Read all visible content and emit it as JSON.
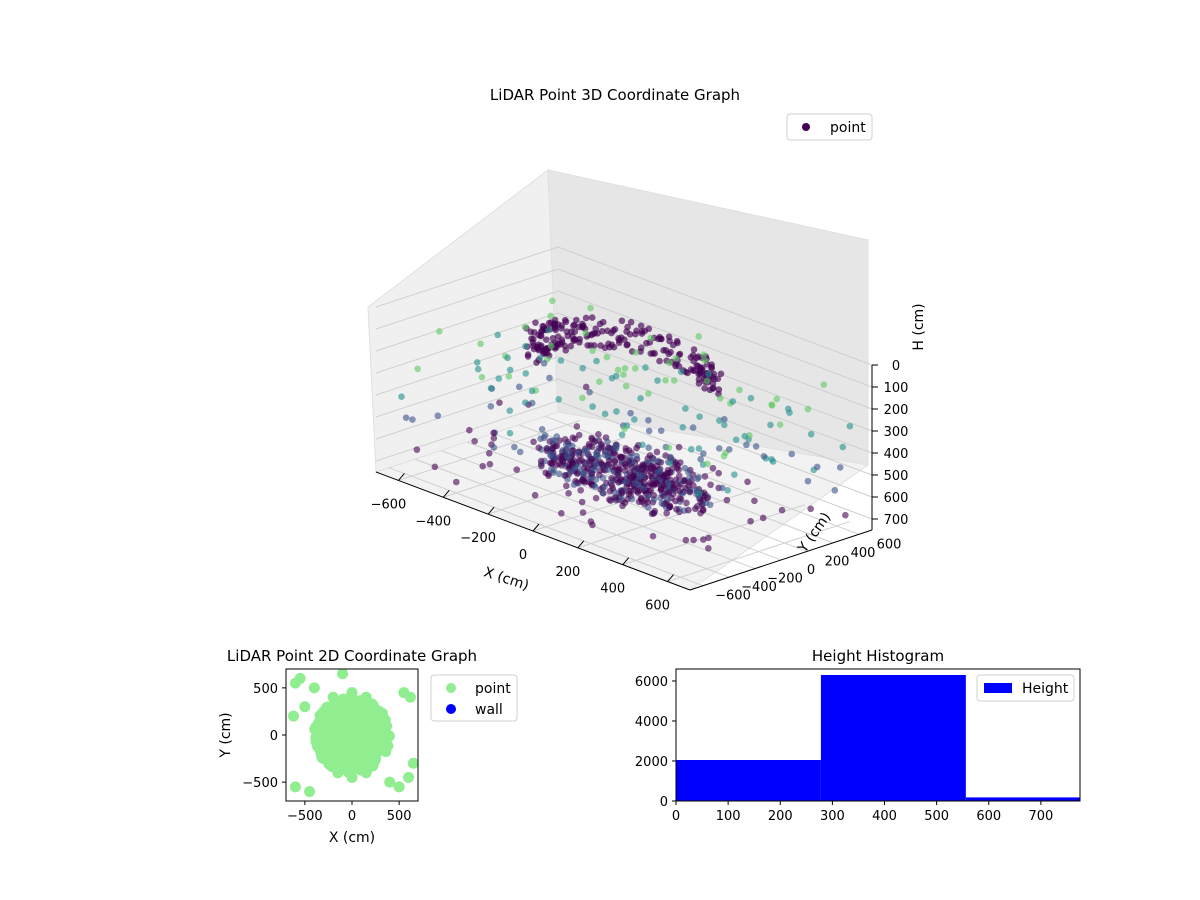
{
  "colors": {
    "point_dark": "#440154",
    "point_mid": "#3b528b",
    "point_teal": "#21918c",
    "point_light": "#5ec962",
    "scatter2d_point": "#90ee90",
    "scatter2d_wall": "#0000ff",
    "histogram_bar": "#0000ff"
  },
  "chart_data": [
    {
      "id": "scatter3d",
      "type": "scatter",
      "projection": "3d",
      "title": "LiDAR Point 3D Coordinate Graph",
      "xlabel": "X (cm)",
      "ylabel": "Y (cm)",
      "zlabel": "H (cm)",
      "xlim": [
        -700,
        700
      ],
      "ylim": [
        -700,
        700
      ],
      "zlim": [
        0,
        750
      ],
      "z_inverted": true,
      "xticks": [
        -600,
        -400,
        -200,
        0,
        200,
        400,
        600
      ],
      "xtick_labels": [
        "−600",
        "−400",
        "−200",
        "0",
        "200",
        "400",
        "600"
      ],
      "yticks": [
        -600,
        -400,
        -200,
        0,
        200,
        400,
        600
      ],
      "ytick_labels": [
        "−600",
        "−400",
        "−200",
        "0",
        "200",
        "400",
        "600"
      ],
      "zticks": [
        0,
        100,
        200,
        300,
        400,
        500,
        600,
        700
      ],
      "ztick_labels": [
        "0",
        "100",
        "200",
        "300",
        "400",
        "500",
        "600",
        "700"
      ],
      "legend": {
        "entries": [
          "point"
        ],
        "placement": "top-right"
      },
      "grid": true,
      "colormap": "viridis",
      "series": [
        {
          "name": "point",
          "description_points": [
            [
              -200,
              100,
              600
            ],
            [
              -100,
              0,
              620
            ],
            [
              0,
              -50,
              600
            ],
            [
              100,
              -100,
              580
            ],
            [
              150,
              50,
              590
            ],
            [
              -250,
              300,
              250
            ],
            [
              -150,
              350,
              200
            ],
            [
              0,
              400,
              180
            ],
            [
              150,
              380,
              220
            ],
            [
              300,
              300,
              250
            ],
            [
              -300,
              200,
              300
            ],
            [
              250,
              150,
              300
            ],
            [
              -200,
              -100,
              550
            ],
            [
              200,
              -200,
              520
            ],
            [
              50,
              200,
              450
            ],
            [
              -50,
              -200,
              500
            ],
            [
              300,
              0,
              400
            ],
            [
              -320,
              50,
              420
            ],
            [
              100,
              300,
              350
            ],
            [
              -100,
              300,
              380
            ],
            [
              500,
              -300,
              450
            ],
            [
              550,
              -100,
              400
            ],
            [
              600,
              100,
              350
            ],
            [
              450,
              350,
              300
            ],
            [
              520,
              250,
              420
            ],
            [
              -600,
              300,
              600
            ],
            [
              -550,
              -200,
              650
            ],
            [
              -500,
              500,
              700
            ],
            [
              600,
              -500,
              600
            ],
            [
              400,
              600,
              500
            ],
            [
              -400,
              -600,
              700
            ],
            [
              200,
              -600,
              650
            ],
            [
              -650,
              0,
              400
            ],
            [
              650,
              500,
              550
            ],
            [
              0,
              650,
              300
            ],
            [
              620,
              -300,
              250
            ],
            [
              580,
              200,
              220
            ],
            [
              500,
              0,
              280
            ],
            [
              450,
              -200,
              300
            ],
            [
              380,
              480,
              260
            ]
          ]
        }
      ]
    },
    {
      "id": "scatter2d",
      "type": "scatter",
      "title": "LiDAR Point 2D Coordinate Graph",
      "xlabel": "X (cm)",
      "ylabel": "Y (cm)",
      "xlim": [
        -700,
        700
      ],
      "ylim": [
        -700,
        700
      ],
      "xticks": [
        -500,
        0,
        500
      ],
      "xtick_labels": [
        "−500",
        "0",
        "500"
      ],
      "yticks": [
        -500,
        0,
        500
      ],
      "ytick_labels": [
        "−500",
        "0",
        "500"
      ],
      "legend": {
        "entries": [
          "point",
          "wall"
        ],
        "placement": "outside-right"
      },
      "series": [
        {
          "name": "point",
          "points": [
            [
              -350,
              0
            ],
            [
              -300,
              250
            ],
            [
              -250,
              -250
            ],
            [
              -200,
              400
            ],
            [
              -150,
              -400
            ],
            [
              0,
              450
            ],
            [
              0,
              -450
            ],
            [
              150,
              400
            ],
            [
              150,
              -400
            ],
            [
              250,
              250
            ],
            [
              250,
              -250
            ],
            [
              350,
              0
            ],
            [
              300,
              150
            ],
            [
              -300,
              -150
            ],
            [
              -600,
              550
            ],
            [
              -550,
              600
            ],
            [
              600,
              -450
            ],
            [
              650,
              -300
            ],
            [
              550,
              450
            ],
            [
              -600,
              -550
            ],
            [
              -450,
              -600
            ],
            [
              -400,
              500
            ],
            [
              400,
              -500
            ],
            [
              -500,
              300
            ],
            [
              500,
              -550
            ],
            [
              -620,
              200
            ],
            [
              620,
              400
            ],
            [
              -100,
              650
            ]
          ]
        },
        {
          "name": "wall",
          "points": []
        }
      ]
    },
    {
      "id": "histogram",
      "type": "bar",
      "title": "Height Histogram",
      "xlim": [
        0,
        775
      ],
      "ylim": [
        0,
        6600
      ],
      "xticks": [
        0,
        100,
        200,
        300,
        400,
        500,
        600,
        700
      ],
      "xtick_labels": [
        "0",
        "100",
        "200",
        "300",
        "400",
        "500",
        "600",
        "700"
      ],
      "yticks": [
        0,
        2000,
        4000,
        6000
      ],
      "ytick_labels": [
        "0",
        "2000",
        "4000",
        "6000"
      ],
      "legend": {
        "entries": [
          "Height"
        ],
        "placement": "top-right"
      },
      "series": [
        {
          "name": "Height",
          "bins": [
            {
              "from": 0,
              "to": 278,
              "count": 2050
            },
            {
              "from": 278,
              "to": 556,
              "count": 6300
            },
            {
              "from": 556,
              "to": 775,
              "count": 180
            }
          ]
        }
      ]
    }
  ]
}
